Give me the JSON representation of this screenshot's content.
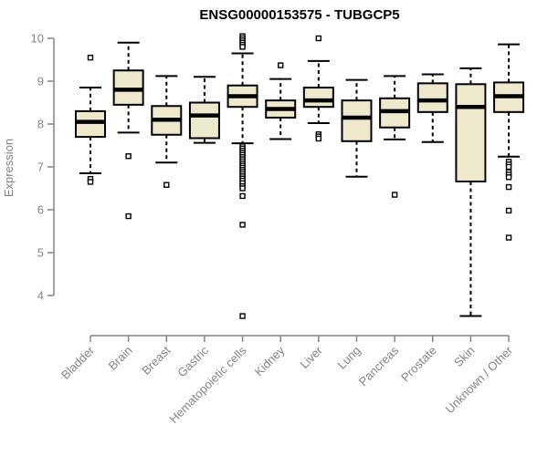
{
  "chart_data": {
    "type": "boxplot",
    "title": "ENSG00000153575 - TUBGCP5",
    "xlabel": "",
    "ylabel": "Expression",
    "ylim": [
      4,
      10
    ],
    "y_ticks": [
      4,
      5,
      6,
      7,
      8,
      9,
      10
    ],
    "grid": false,
    "legend": "none",
    "categories": [
      "Bladder",
      "Brain",
      "Breast",
      "Gastric",
      "Hematopoietic cells",
      "Kidney",
      "Liver",
      "Lung",
      "Pancreas",
      "Prostate",
      "Skin",
      "Unknown / Other"
    ],
    "boxes": [
      {
        "category": "Bladder",
        "whisker_low": 6.85,
        "q1": 7.7,
        "median": 8.05,
        "q3": 8.3,
        "whisker_high": 8.85,
        "outliers": [
          9.55,
          6.72,
          6.65
        ]
      },
      {
        "category": "Brain",
        "whisker_low": 7.8,
        "q1": 8.45,
        "median": 8.8,
        "q3": 9.25,
        "whisker_high": 9.9,
        "outliers": [
          7.25,
          5.85
        ]
      },
      {
        "category": "Breast",
        "whisker_low": 7.1,
        "q1": 7.75,
        "median": 8.1,
        "q3": 8.42,
        "whisker_high": 9.12,
        "outliers": [
          6.58
        ]
      },
      {
        "category": "Gastric",
        "whisker_low": 7.56,
        "q1": 7.67,
        "median": 8.2,
        "q3": 8.5,
        "whisker_high": 9.1,
        "outliers": []
      },
      {
        "category": "Hematopoietic cells",
        "whisker_low": 7.55,
        "q1": 8.4,
        "median": 8.65,
        "q3": 8.9,
        "whisker_high": 9.65,
        "outliers": [
          10.05,
          10.0,
          9.95,
          9.9,
          9.85,
          9.8,
          7.48,
          7.43,
          7.38,
          7.33,
          7.28,
          7.23,
          7.18,
          7.13,
          7.08,
          7.03,
          6.98,
          6.93,
          6.88,
          6.83,
          6.78,
          6.73,
          6.68,
          6.62,
          6.55,
          6.5,
          6.32,
          5.65,
          3.52
        ]
      },
      {
        "category": "Kidney",
        "whisker_low": 7.65,
        "q1": 8.15,
        "median": 8.35,
        "q3": 8.55,
        "whisker_high": 9.05,
        "outliers": [
          9.37
        ]
      },
      {
        "category": "Liver",
        "whisker_low": 8.02,
        "q1": 8.4,
        "median": 8.55,
        "q3": 8.85,
        "whisker_high": 9.47,
        "outliers": [
          10.0,
          7.76,
          7.71,
          7.66
        ]
      },
      {
        "category": "Lung",
        "whisker_low": 6.77,
        "q1": 7.6,
        "median": 8.15,
        "q3": 8.55,
        "whisker_high": 9.03,
        "outliers": []
      },
      {
        "category": "Pancreas",
        "whisker_low": 7.64,
        "q1": 7.92,
        "median": 8.3,
        "q3": 8.6,
        "whisker_high": 9.12,
        "outliers": [
          6.35
        ]
      },
      {
        "category": "Prostate",
        "whisker_low": 7.58,
        "q1": 8.28,
        "median": 8.55,
        "q3": 8.95,
        "whisker_high": 9.16,
        "outliers": []
      },
      {
        "category": "Skin",
        "whisker_low": 3.52,
        "q1": 6.66,
        "median": 8.4,
        "q3": 8.93,
        "whisker_high": 9.3,
        "outliers": []
      },
      {
        "category": "Unknown / Other",
        "whisker_low": 7.24,
        "q1": 8.28,
        "median": 8.65,
        "q3": 8.97,
        "whisker_high": 9.86,
        "outliers": [
          7.12,
          7.06,
          7.0,
          6.88,
          6.82,
          6.76,
          6.53,
          5.98,
          5.35
        ]
      }
    ],
    "colors": {
      "box_fill": "#EEE8CD",
      "box_border": "#000000",
      "median": "#000000",
      "whisker": "#000000",
      "outlier": "#000000",
      "axis": "#848484",
      "title": "#000000"
    }
  }
}
